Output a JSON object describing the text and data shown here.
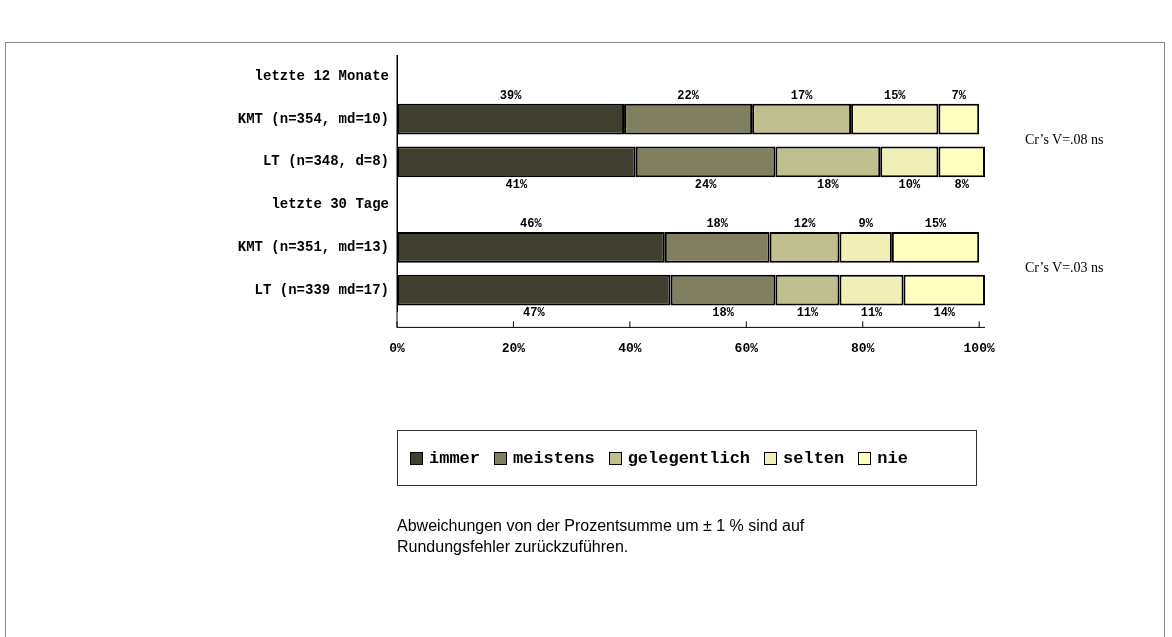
{
  "chart_data": {
    "type": "bar",
    "orientation": "horizontal",
    "stacked": true,
    "categories": [
      "letzte 12 Monate",
      "KMT (n=354, md=10)",
      "LT (n=348, d=8)",
      "letzte 30 Tage",
      "KMT (n=351, md=13)",
      "LT (n=339 md=17)"
    ],
    "series": [
      {
        "name": "immer",
        "color": "#403f30",
        "values": [
          null,
          39,
          41,
          null,
          46,
          47
        ],
        "value_labels": [
          null,
          "39%",
          "41%",
          null,
          "46%",
          "47%"
        ]
      },
      {
        "name": "meistens",
        "color": "#807f60",
        "values": [
          null,
          22,
          24,
          null,
          18,
          18
        ],
        "value_labels": [
          null,
          "22%",
          "24%",
          null,
          "18%",
          "18%"
        ]
      },
      {
        "name": "gelegentlich",
        "color": "#c0bf90",
        "values": [
          null,
          17,
          18,
          null,
          12,
          11
        ],
        "value_labels": [
          null,
          "17%",
          "18%",
          null,
          "12%",
          "11%"
        ]
      },
      {
        "name": "selten",
        "color": "#f0efb8",
        "values": [
          null,
          15,
          10,
          null,
          9,
          11
        ],
        "value_labels": [
          null,
          "15%",
          "10%",
          null,
          "9%",
          "11%"
        ]
      },
      {
        "name": "nie",
        "color": "#ffffc0",
        "values": [
          null,
          7,
          8,
          null,
          15,
          14
        ],
        "value_labels": [
          null,
          "7%",
          "8%",
          null,
          "15%",
          "14%"
        ]
      }
    ],
    "xlim": [
      0,
      101
    ],
    "xticks": [
      {
        "value": 0,
        "label": "0%"
      },
      {
        "value": 20,
        "label": "20%"
      },
      {
        "value": 40,
        "label": "40%"
      },
      {
        "value": 60,
        "label": "60%"
      },
      {
        "value": 80,
        "label": "80%"
      },
      {
        "value": 100,
        "label": "100%"
      }
    ],
    "grid": false,
    "legend": "bottom",
    "annotations": [
      "Cr’s V=.08 ns",
      "Cr’s V=.03 ns",
      "Abweichungen von der Prozentsumme um ± 1 % sind auf Rundungsfehler zurückzuführen."
    ]
  }
}
